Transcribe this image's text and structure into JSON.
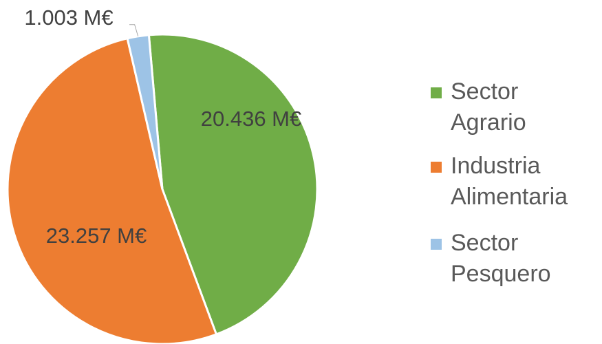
{
  "chart_data": {
    "type": "pie",
    "categories": [
      "Sector Agrario",
      "Industria Alimentaria",
      "Sector Pesquero"
    ],
    "values": [
      20436,
      23257,
      1003
    ],
    "value_labels": [
      "20.436 M€",
      "23.257 M€",
      "1.003 M€"
    ],
    "colors": [
      "#70ad47",
      "#ed7d31",
      "#9dc3e6"
    ],
    "legend": "right"
  }
}
